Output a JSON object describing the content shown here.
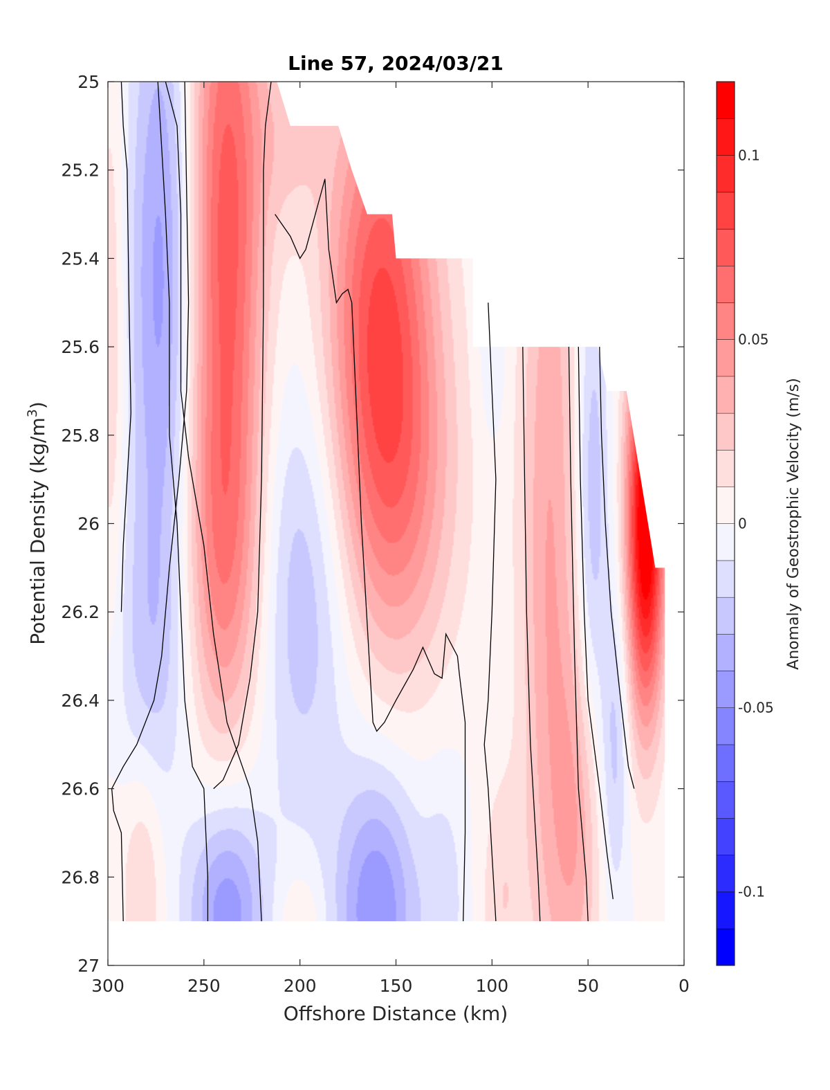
{
  "chart_data": {
    "type": "heatmap",
    "title": "Line 57, 2024/03/21",
    "xlabel": "Offshore Distance (km)",
    "ylabel_prefix": "Potential Density (kg/m",
    "ylabel_sup": "3",
    "ylabel_suffix": ")",
    "xlim": [
      300,
      0
    ],
    "ylim": [
      25,
      27
    ],
    "x_ticks": [
      300,
      250,
      200,
      150,
      100,
      50,
      0
    ],
    "x_tick_labels": [
      "300",
      "250",
      "200",
      "150",
      "100",
      "50",
      "0"
    ],
    "y_ticks": [
      25,
      25.2,
      25.4,
      25.6,
      25.8,
      26,
      26.2,
      26.4,
      26.6,
      26.8,
      27
    ],
    "y_tick_labels": [
      "25",
      "25.2",
      "25.4",
      "25.6",
      "25.8",
      "26",
      "26.2",
      "26.4",
      "26.6",
      "26.8",
      "27"
    ],
    "colorbar": {
      "label": "Anomaly of Geostrophic Velocity (m/s)",
      "range": [
        -0.12,
        0.12
      ],
      "step": 0.01,
      "ticks": [
        0.1,
        0.05,
        0,
        -0.05,
        -0.1
      ],
      "tick_labels": [
        "0.1",
        "0.05",
        "0",
        "-0.05",
        "-0.1"
      ]
    },
    "palette": {
      "positive": "#ff0000",
      "negative": "#0000ff",
      "zero": "#ffffff",
      "contour": "#000000"
    },
    "data_top_boundary": [
      [
        300,
        25.0
      ],
      [
        212,
        25.0
      ],
      [
        205,
        25.1
      ],
      [
        180,
        25.1
      ],
      [
        173,
        25.2
      ],
      [
        165,
        25.3
      ],
      [
        152,
        25.3
      ],
      [
        150,
        25.4
      ],
      [
        110,
        25.4
      ],
      [
        110,
        25.6
      ],
      [
        45,
        25.6
      ],
      [
        40,
        25.7
      ],
      [
        30,
        25.7
      ],
      [
        15,
        26.1
      ],
      [
        10,
        26.1
      ],
      [
        10,
        26.3
      ]
    ],
    "data_bottom_boundary": 26.9,
    "features": [
      {
        "name": "neg-core-275",
        "x": 272,
        "y": 25.45,
        "sx": 12,
        "sy": 0.55,
        "amp": -0.045
      },
      {
        "name": "neg-deep-275",
        "x": 278,
        "y": 26.3,
        "sx": 15,
        "sy": 0.25,
        "amp": -0.018
      },
      {
        "name": "pos-west-edge",
        "x": 298,
        "y": 25.6,
        "sx": 5,
        "sy": 0.5,
        "amp": 0.02
      },
      {
        "name": "pos-core-235",
        "x": 238,
        "y": 25.3,
        "sx": 14,
        "sy": 0.55,
        "amp": 0.075
      },
      {
        "name": "pos-mid-240",
        "x": 240,
        "y": 26.1,
        "sx": 15,
        "sy": 0.3,
        "amp": 0.04
      },
      {
        "name": "pos-deep-280",
        "x": 282,
        "y": 26.8,
        "sx": 8,
        "sy": 0.2,
        "amp": 0.022
      },
      {
        "name": "neg-deep-240",
        "x": 238,
        "y": 26.88,
        "sx": 14,
        "sy": 0.18,
        "amp": -0.048
      },
      {
        "name": "pos-top-205",
        "x": 205,
        "y": 25.12,
        "sx": 12,
        "sy": 0.15,
        "amp": 0.018
      },
      {
        "name": "neg-mid-200",
        "x": 198,
        "y": 26.15,
        "sx": 18,
        "sy": 0.35,
        "amp": -0.03
      },
      {
        "name": "pos-core-160",
        "x": 158,
        "y": 25.5,
        "sx": 20,
        "sy": 0.4,
        "amp": 0.075
      },
      {
        "name": "pos-mid-150",
        "x": 148,
        "y": 25.95,
        "sx": 22,
        "sy": 0.3,
        "amp": 0.035
      },
      {
        "name": "neg-deep-160",
        "x": 160,
        "y": 26.88,
        "sx": 15,
        "sy": 0.22,
        "amp": -0.05
      },
      {
        "name": "neg-deep-125",
        "x": 125,
        "y": 26.85,
        "sx": 8,
        "sy": 0.2,
        "amp": -0.015
      },
      {
        "name": "pos-deep-195",
        "x": 200,
        "y": 26.9,
        "sx": 8,
        "sy": 0.08,
        "amp": 0.015
      },
      {
        "name": "pos-deep-95",
        "x": 95,
        "y": 26.85,
        "sx": 8,
        "sy": 0.2,
        "amp": 0.018
      },
      {
        "name": "neg-slice-100",
        "x": 100,
        "y": 25.6,
        "sx": 5,
        "sy": 0.15,
        "amp": -0.012
      },
      {
        "name": "pos-band-75",
        "x": 70,
        "y": 26.05,
        "sx": 11,
        "sy": 0.8,
        "amp": 0.04
      },
      {
        "name": "pos-band-55",
        "x": 55,
        "y": 26.7,
        "sx": 9,
        "sy": 0.3,
        "amp": 0.03
      },
      {
        "name": "neg-band-48",
        "x": 48,
        "y": 25.95,
        "sx": 6,
        "sy": 0.4,
        "amp": -0.03
      },
      {
        "name": "neg-band-35",
        "x": 36,
        "y": 26.5,
        "sx": 5,
        "sy": 0.25,
        "amp": -0.025
      },
      {
        "name": "pos-coastal",
        "x": 20,
        "y": 26.0,
        "sx": 7,
        "sy": 0.3,
        "amp": 0.13
      }
    ],
    "zero_contours": [
      [
        [
          293,
          25.0
        ],
        [
          292,
          25.1
        ],
        [
          290,
          25.2
        ],
        [
          289,
          25.5
        ],
        [
          288,
          25.75
        ],
        [
          290,
          25.9
        ],
        [
          292,
          26.05
        ],
        [
          293,
          26.2
        ]
      ],
      [
        [
          260,
          25.0
        ],
        [
          259,
          25.25
        ],
        [
          258,
          25.5
        ],
        [
          259,
          25.7
        ],
        [
          263,
          25.9
        ],
        [
          268,
          26.1
        ],
        [
          272,
          26.3
        ],
        [
          276,
          26.4
        ],
        [
          285,
          26.5
        ],
        [
          292,
          26.55
        ],
        [
          298,
          26.6
        ],
        [
          297,
          26.65
        ],
        [
          293,
          26.7
        ],
        [
          292,
          26.9
        ]
      ],
      [
        [
          213,
          25.3
        ],
        [
          205,
          25.35
        ],
        [
          200,
          25.4
        ],
        [
          197,
          25.38
        ],
        [
          192,
          25.3
        ],
        [
          187,
          25.22
        ],
        [
          185,
          25.38
        ],
        [
          181,
          25.5
        ],
        [
          178,
          25.48
        ],
        [
          175,
          25.47
        ],
        [
          173,
          25.5
        ],
        [
          171,
          25.7
        ],
        [
          168,
          26.0
        ],
        [
          164,
          26.3
        ],
        [
          162,
          26.45
        ],
        [
          160,
          26.47
        ],
        [
          156,
          26.45
        ],
        [
          150,
          26.4
        ],
        [
          141,
          26.33
        ],
        [
          136,
          26.28
        ],
        [
          134,
          26.3
        ],
        [
          130,
          26.34
        ],
        [
          126,
          26.35
        ],
        [
          124,
          26.25
        ],
        [
          118,
          26.3
        ],
        [
          117,
          26.34
        ],
        [
          114,
          26.45
        ],
        [
          114,
          26.7
        ],
        [
          115,
          26.9
        ]
      ],
      [
        [
          274,
          25.0
        ],
        [
          270,
          25.3
        ],
        [
          268,
          25.5
        ],
        [
          268,
          25.8
        ],
        [
          264,
          26.0
        ],
        [
          262,
          26.2
        ],
        [
          260,
          26.4
        ],
        [
          256,
          26.55
        ],
        [
          250,
          26.6
        ],
        [
          248,
          26.8
        ],
        [
          248,
          26.9
        ]
      ],
      [
        [
          270,
          25.0
        ],
        [
          264,
          25.1
        ],
        [
          262,
          25.3
        ],
        [
          262,
          25.5
        ],
        [
          262,
          25.7
        ],
        [
          258,
          25.85
        ],
        [
          250,
          26.05
        ],
        [
          245,
          26.25
        ],
        [
          238,
          26.45
        ],
        [
          230,
          26.55
        ],
        [
          226,
          26.6
        ],
        [
          222,
          26.72
        ],
        [
          220,
          26.9
        ]
      ]
    ],
    "extra_contours": [
      [
        [
          215,
          25.0
        ],
        [
          218,
          25.1
        ],
        [
          219,
          25.2
        ],
        [
          219,
          25.5
        ],
        [
          220,
          25.9
        ],
        [
          222,
          26.2
        ],
        [
          226,
          26.35
        ],
        [
          232,
          26.5
        ],
        [
          240,
          26.58
        ],
        [
          245,
          26.6
        ]
      ],
      [
        [
          102,
          25.5
        ],
        [
          100,
          25.7
        ],
        [
          98,
          25.9
        ],
        [
          100,
          26.2
        ],
        [
          102,
          26.4
        ],
        [
          104,
          26.5
        ],
        [
          102,
          26.6
        ],
        [
          98,
          26.9
        ]
      ],
      [
        [
          84,
          25.6
        ],
        [
          83,
          25.9
        ],
        [
          82,
          26.2
        ],
        [
          80,
          26.5
        ],
        [
          76,
          26.8
        ],
        [
          75,
          26.9
        ]
      ],
      [
        [
          60,
          25.6
        ],
        [
          59,
          25.9
        ],
        [
          57,
          26.3
        ],
        [
          55,
          26.6
        ],
        [
          51,
          26.8
        ],
        [
          50,
          26.9
        ]
      ],
      [
        [
          55,
          25.6
        ],
        [
          54,
          25.9
        ],
        [
          52,
          26.2
        ],
        [
          50,
          26.4
        ],
        [
          44,
          26.6
        ],
        [
          40,
          26.75
        ],
        [
          37,
          26.85
        ]
      ],
      [
        [
          44,
          25.6
        ],
        [
          43,
          25.8
        ],
        [
          41,
          26.0
        ],
        [
          38,
          26.2
        ],
        [
          33,
          26.4
        ],
        [
          29,
          26.55
        ],
        [
          26,
          26.6
        ]
      ]
    ]
  }
}
